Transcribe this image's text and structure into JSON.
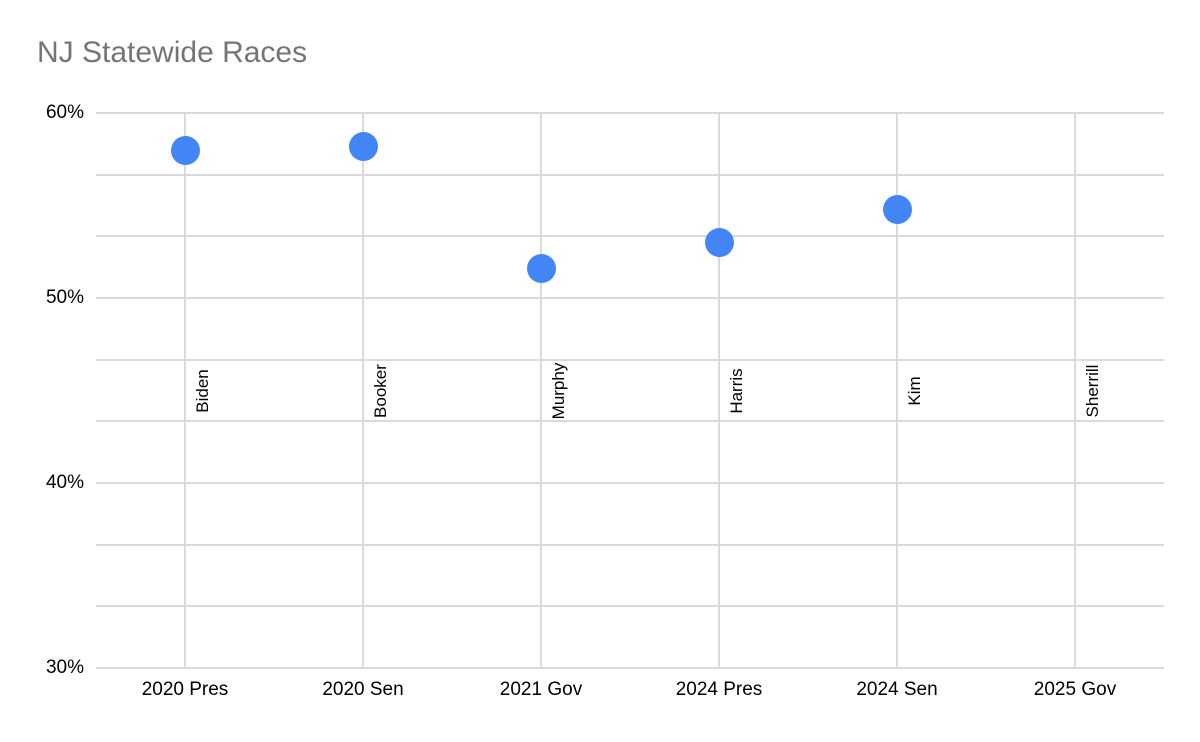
{
  "chart_data": {
    "type": "scatter",
    "title": "NJ Statewide Races",
    "categories": [
      "2020 Pres",
      "2020 Sen",
      "2021 Gov",
      "2024 Pres",
      "2024 Sen",
      "2025 Gov"
    ],
    "points": [
      {
        "category": "2020 Pres",
        "candidate": "Biden",
        "value": 58.0
      },
      {
        "category": "2020 Sen",
        "candidate": "Booker",
        "value": 58.2
      },
      {
        "category": "2021 Gov",
        "candidate": "Murphy",
        "value": 51.6
      },
      {
        "category": "2024 Pres",
        "candidate": "Harris",
        "value": 53.0
      },
      {
        "category": "2024 Sen",
        "candidate": "Kim",
        "value": 54.8
      },
      {
        "category": "2025 Gov",
        "candidate": "Sherrill",
        "value": null
      }
    ],
    "ylabel": "",
    "xlabel": "",
    "ylim": [
      30,
      60
    ],
    "ytick_values": [
      60,
      50,
      40,
      30
    ],
    "ytick_labels": [
      "60%",
      "50%",
      "40%",
      "30%"
    ],
    "minor_gridlines_between_major": 2,
    "grid": true,
    "legend_position": "none",
    "colors": {
      "point": "#4285f4",
      "gridline": "#dadada",
      "title_text": "#757575",
      "axis_text": "#000000",
      "background": "#ffffff"
    }
  }
}
